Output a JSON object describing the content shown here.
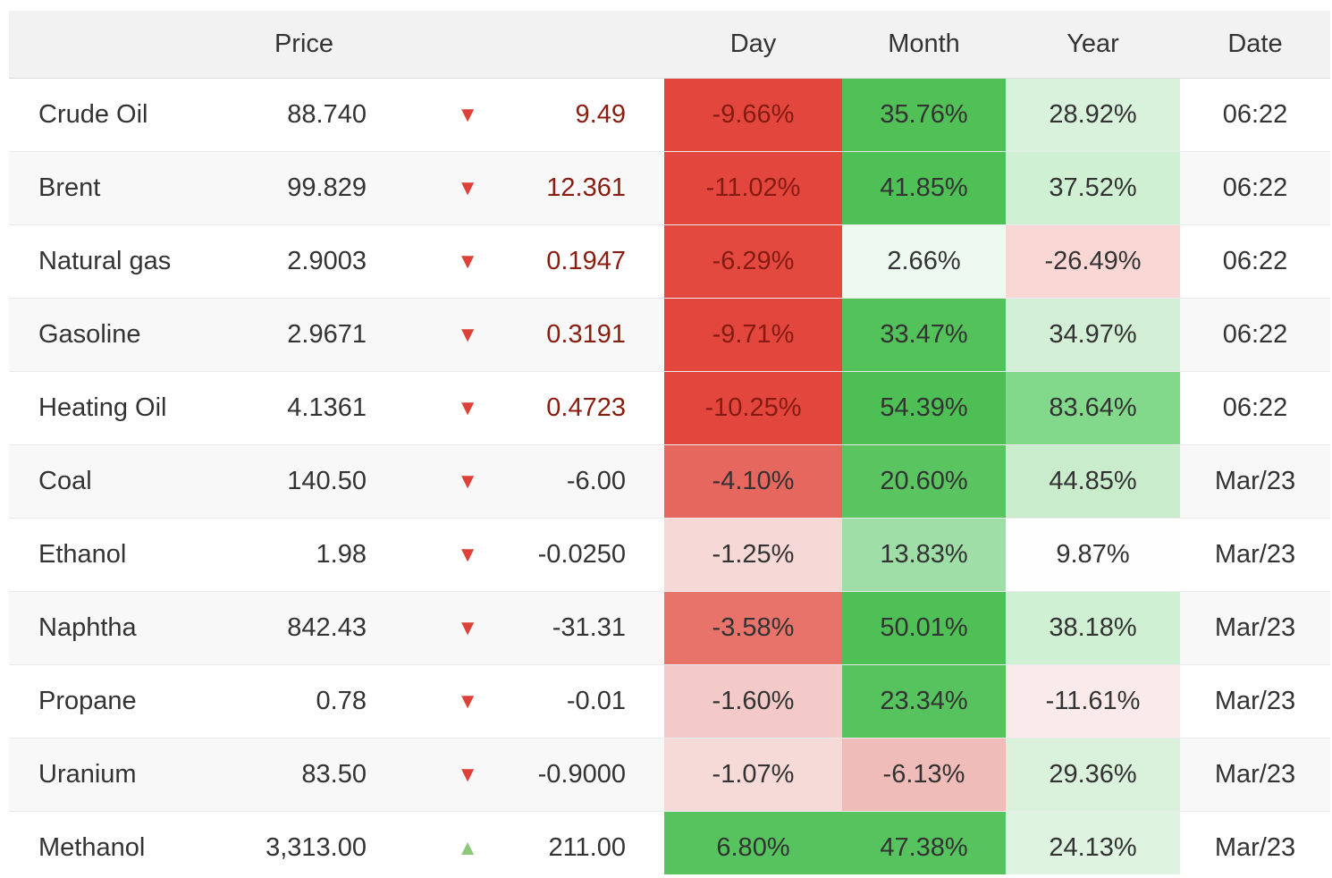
{
  "header": {
    "price": "Price",
    "day": "Day",
    "month": "Month",
    "year": "Year",
    "date": "Date"
  },
  "colors": {
    "strong_red": "#e2463d",
    "strong_green": "#50c057",
    "dark_red_text": "#861b12",
    "body_text": "#333333",
    "header_bg": "#f2f2f3",
    "stripe_bg": "#f8f8f9"
  },
  "rows": [
    {
      "name": "Crude Oil",
      "price": "88.740",
      "arrow": "▼",
      "arrow_color": "#dc4237",
      "change": "9.49",
      "change_color": "#8b1d10",
      "day": "-9.66%",
      "day_bg": "#e2463d",
      "day_color": "#861b12",
      "month": "35.76%",
      "month_bg": "#50c057",
      "month_color": "#333333",
      "year": "28.92%",
      "year_bg": "#d9f2db",
      "year_color": "#333333",
      "date": "06:22"
    },
    {
      "name": "Brent",
      "price": "99.829",
      "arrow": "▼",
      "arrow_color": "#dc4237",
      "change": "12.361",
      "change_color": "#8b1d10",
      "day": "-11.02%",
      "day_bg": "#e2463d",
      "day_color": "#861b12",
      "month": "41.85%",
      "month_bg": "#4ec055",
      "month_color": "#333333",
      "year": "37.52%",
      "year_bg": "#cff0d3",
      "year_color": "#333333",
      "date": "06:22"
    },
    {
      "name": "Natural gas",
      "price": "2.9003",
      "arrow": "▼",
      "arrow_color": "#dc4237",
      "change": "0.1947",
      "change_color": "#8b1d10",
      "day": "-6.29%",
      "day_bg": "#e3493f",
      "day_color": "#861b12",
      "month": "2.66%",
      "month_bg": "#eef9ef",
      "month_color": "#333333",
      "year": "-26.49%",
      "year_bg": "#f8d7d5",
      "year_color": "#333333",
      "date": "06:22"
    },
    {
      "name": "Gasoline",
      "price": "2.9671",
      "arrow": "▼",
      "arrow_color": "#dc4237",
      "change": "0.3191",
      "change_color": "#8b1d10",
      "day": "-9.71%",
      "day_bg": "#e2463d",
      "day_color": "#861b12",
      "month": "33.47%",
      "month_bg": "#53c25a",
      "month_color": "#333333",
      "year": "34.97%",
      "year_bg": "#d3f0d6",
      "year_color": "#333333",
      "date": "06:22"
    },
    {
      "name": "Heating Oil",
      "price": "4.1361",
      "arrow": "▼",
      "arrow_color": "#dc4237",
      "change": "0.4723",
      "change_color": "#8b1d10",
      "day": "-10.25%",
      "day_bg": "#e2463d",
      "day_color": "#861b12",
      "month": "54.39%",
      "month_bg": "#4dbf54",
      "month_color": "#333333",
      "year": "83.64%",
      "year_bg": "#83d98b",
      "year_color": "#333333",
      "date": "06:22"
    },
    {
      "name": "Coal",
      "price": "140.50",
      "arrow": "▼",
      "arrow_color": "#dc4237",
      "change": "-6.00",
      "change_color": "#333333",
      "day": "-4.10%",
      "day_bg": "#e6675e",
      "day_color": "#333333",
      "month": "20.60%",
      "month_bg": "#5ac461",
      "month_color": "#333333",
      "year": "44.85%",
      "year_bg": "#c9edcc",
      "year_color": "#333333",
      "date": "Mar/23"
    },
    {
      "name": "Ethanol",
      "price": "1.98",
      "arrow": "▼",
      "arrow_color": "#dc4237",
      "change": "-0.0250",
      "change_color": "#333333",
      "day": "-1.25%",
      "day_bg": "#f6d8d6",
      "day_color": "#333333",
      "month": "13.83%",
      "month_bg": "#9fdea7",
      "month_color": "#333333",
      "year": "9.87%",
      "year_bg": "#fdfefd",
      "year_color": "#333333",
      "date": "Mar/23"
    },
    {
      "name": "Naphtha",
      "price": "842.43",
      "arrow": "▼",
      "arrow_color": "#dc4237",
      "change": "-31.31",
      "change_color": "#333333",
      "day": "-3.58%",
      "day_bg": "#e8736b",
      "day_color": "#333333",
      "month": "50.01%",
      "month_bg": "#4fc056",
      "month_color": "#333333",
      "year": "38.18%",
      "year_bg": "#cff0d3",
      "year_color": "#333333",
      "date": "Mar/23"
    },
    {
      "name": "Propane",
      "price": "0.78",
      "arrow": "▼",
      "arrow_color": "#dc4237",
      "change": "-0.01",
      "change_color": "#333333",
      "day": "-1.60%",
      "day_bg": "#f3cac7",
      "day_color": "#333333",
      "month": "23.34%",
      "month_bg": "#57c35e",
      "month_color": "#333333",
      "year": "-11.61%",
      "year_bg": "#faeae9",
      "year_color": "#333333",
      "date": "Mar/23"
    },
    {
      "name": "Uranium",
      "price": "83.50",
      "arrow": "▼",
      "arrow_color": "#dc4237",
      "change": "-0.9000",
      "change_color": "#333333",
      "day": "-1.07%",
      "day_bg": "#f6dad8",
      "day_color": "#333333",
      "month": "-6.13%",
      "month_bg": "#f0bcb9",
      "month_color": "#333333",
      "year": "29.36%",
      "year_bg": "#daf2dc",
      "year_color": "#333333",
      "date": "Mar/23"
    },
    {
      "name": "Methanol",
      "price": "3,313.00",
      "arrow": "▲",
      "arrow_color": "#8bc87b",
      "change": "211.00",
      "change_color": "#333333",
      "day": "6.80%",
      "day_bg": "#57c35e",
      "day_color": "#333333",
      "month": "47.38%",
      "month_bg": "#57c35e",
      "month_color": "#333333",
      "year": "24.13%",
      "year_bg": "#def4e0",
      "year_color": "#333333",
      "date": "Mar/23"
    }
  ]
}
